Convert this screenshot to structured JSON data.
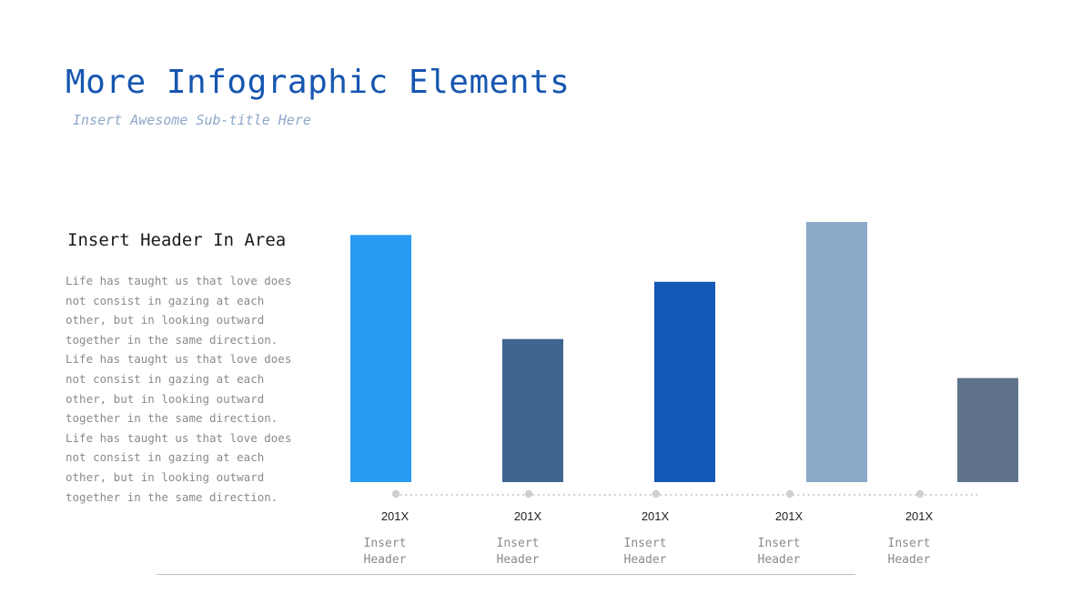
{
  "slide": {
    "title": "More Infographic Elements",
    "subtitle": "Insert Awesome Sub-title Here",
    "section_header": "Insert Header In Area",
    "body_text": "Life has taught us that love does\nnot consist in gazing at each\nother, but in looking outward\ntogether in the same direction.\nLife has taught us that love does\nnot consist in gazing at each\nother, but in looking outward\ntogether in the same direction.\nLife has taught us that love does\nnot consist in gazing at each\nother, but in looking outward\ntogether in the same direction."
  },
  "chart_data": {
    "type": "bar",
    "title": "",
    "xlabel": "",
    "ylabel": "",
    "ylim": [
      0,
      100
    ],
    "grid": false,
    "legend": "none",
    "values": [
      95,
      55,
      77,
      100,
      40
    ],
    "bar_colors": [
      "#2a9bf2",
      "#3e6690",
      "#1458b8",
      "#8ba9c8",
      "#5e738a"
    ],
    "timeline": [
      {
        "year": "201X",
        "label_line1": "Insert",
        "label_line2": "Header"
      },
      {
        "year": "201X",
        "label_line1": "Insert",
        "label_line2": "Header"
      },
      {
        "year": "201X",
        "label_line1": "Insert",
        "label_line2": "Header"
      },
      {
        "year": "201X",
        "label_line1": "Insert",
        "label_line2": "Header"
      },
      {
        "year": "201X",
        "label_line1": "Insert",
        "label_line2": "Header"
      }
    ]
  }
}
